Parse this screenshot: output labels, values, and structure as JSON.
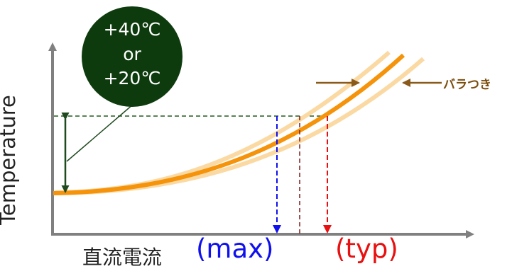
{
  "diagram": {
    "ylabel": "Temperature",
    "xlabel": "直流電流",
    "max_label": "(max)",
    "typ_label": "(typ)",
    "variation_label": "バラつき",
    "bubble": {
      "line1": "+40℃",
      "line2": "or",
      "line3": "+20℃"
    },
    "colors": {
      "axis": "#808080",
      "curve_main": "#f5930a",
      "curve_band": "#fbd9a3",
      "bubble_fill": "#0e3b0e",
      "dashed_reference": "#1f5c1f",
      "max_marker": "#1010ee",
      "typ_marker": "#e81010",
      "mid_marker": "#7a1a1a",
      "arrow_brown": "#8a5a1a"
    }
  }
}
